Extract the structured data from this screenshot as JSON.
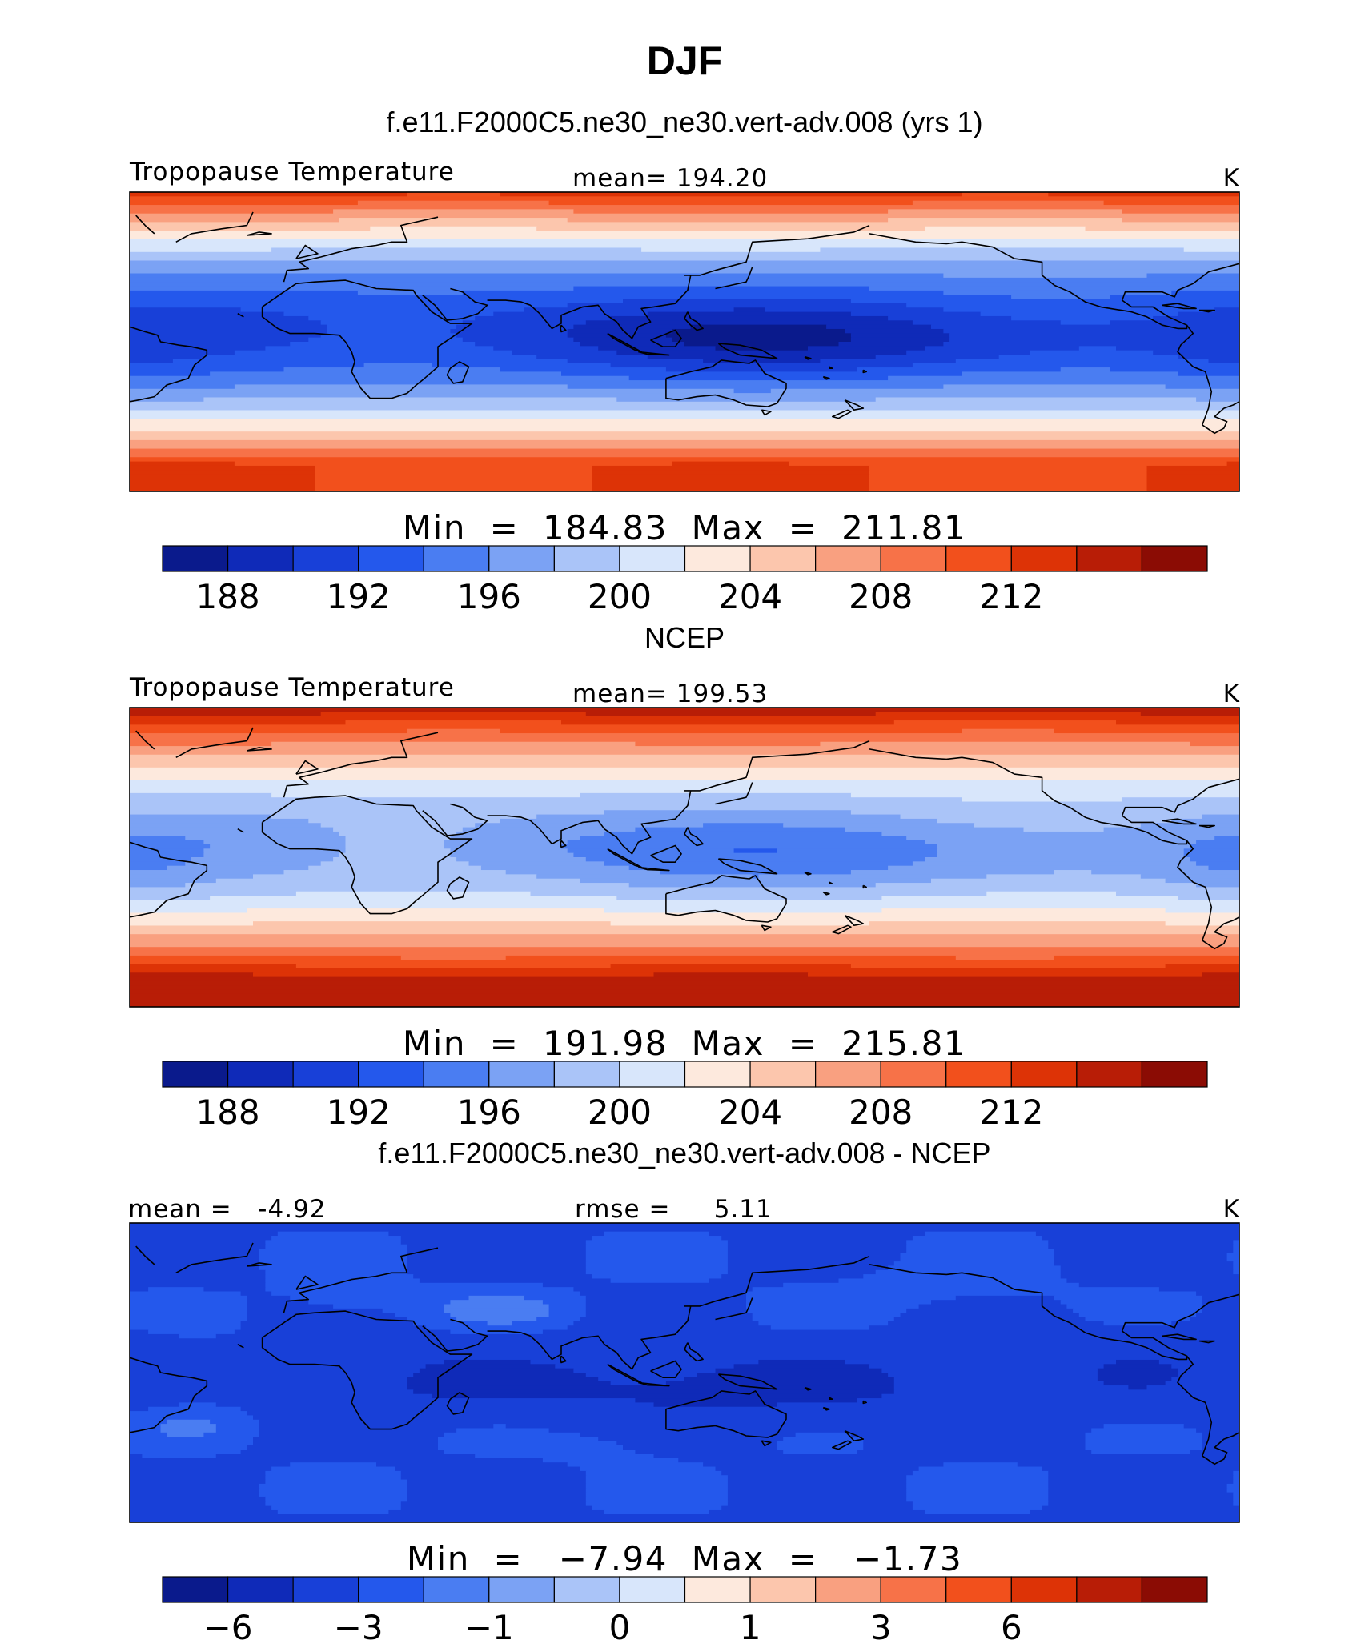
{
  "figure": {
    "title": "DJF",
    "colors": [
      "#0a1a8c",
      "#0f2ab8",
      "#1840d8",
      "#2458ec",
      "#4a7df2",
      "#7ba2f4",
      "#aac4f8",
      "#d8e6fb",
      "#fde9dd",
      "#fcc6ad",
      "#f9a080",
      "#f77248",
      "#f2501c",
      "#dd3306",
      "#b81d06",
      "#8b0c04"
    ],
    "coast_color": "#000000"
  },
  "chart_data": [
    {
      "type": "heatmap",
      "title": "f.e11.F2000C5.ne30_ne30.vert-adv.008 (yrs 1)",
      "left_label": "Tropopause Temperature",
      "center_label": "mean=  194.20",
      "units": "K",
      "mean": 194.2,
      "min": 184.83,
      "max": 211.81,
      "minmax_label": "Min  =  184.83  Max  =  211.81",
      "colorbar_levels": [
        186,
        188,
        190,
        192,
        194,
        196,
        198,
        200,
        202,
        204,
        206,
        208,
        210,
        212,
        214
      ],
      "colorbar_ticks": [
        "188",
        "192",
        "196",
        "200",
        "204",
        "208",
        "212"
      ],
      "xlim": [
        -60,
        300
      ],
      "ylim": [
        -90,
        90
      ],
      "field": {
        "eq_base": 189.5,
        "pole_n": 211.0,
        "pole_s": 210.0,
        "warm_pool": -4.2,
        "warm_pool_lon": 150,
        "s_america": -1.2,
        "africa": 0.8
      }
    },
    {
      "type": "heatmap",
      "title": "NCEP",
      "left_label": "Tropopause Temperature",
      "center_label": "mean=  199.53",
      "units": "K",
      "mean": 199.53,
      "min": 191.98,
      "max": 215.81,
      "minmax_label": "Min  =  191.98  Max  =  215.81",
      "colorbar_levels": [
        186,
        188,
        190,
        192,
        194,
        196,
        198,
        200,
        202,
        204,
        206,
        208,
        210,
        212,
        214
      ],
      "colorbar_ticks": [
        "188",
        "192",
        "196",
        "200",
        "204",
        "208",
        "212"
      ],
      "xlim": [
        -60,
        300
      ],
      "ylim": [
        -90,
        90
      ],
      "field": {
        "eq_base": 194.8,
        "pole_n": 213.5,
        "pole_s": 213.0,
        "warm_pool": -2.6,
        "warm_pool_lon": 150,
        "s_america": -1.6,
        "africa": 1.4
      }
    },
    {
      "type": "heatmap",
      "title": "f.e11.F2000C5.ne30_ne30.vert-adv.008 - NCEP",
      "left_label": "mean =   -4.92",
      "center_label": "rmse =     5.11",
      "units": "K",
      "mean": -4.92,
      "rmse": 5.11,
      "min": -7.94,
      "max": -1.73,
      "minmax_label": "Min  =   −7.94  Max  =   −1.73",
      "colorbar_levels": [
        -8,
        -6,
        -4,
        -3,
        -2,
        -1,
        -0.5,
        0,
        0.5,
        1,
        2,
        3,
        4,
        6,
        8
      ],
      "colorbar_ticks": [
        "−6",
        "−3",
        "−1",
        "0",
        "1",
        "3",
        "6"
      ],
      "xlim": [
        -60,
        300
      ],
      "ylim": [
        -90,
        90
      ],
      "field": {
        "diff": true
      }
    }
  ]
}
